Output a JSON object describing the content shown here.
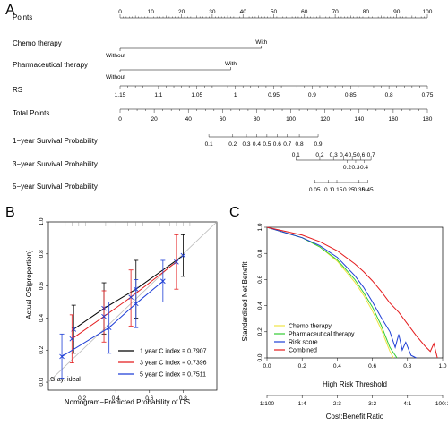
{
  "panels": {
    "a": "A",
    "b": "B",
    "c": "C"
  },
  "chart_data": [
    {
      "type": "nomogram",
      "rows": [
        {
          "label": "Points",
          "scale": [
            {
              "value": 0,
              "text": "0"
            },
            {
              "value": 10,
              "text": "10"
            },
            {
              "value": 20,
              "text": "20"
            },
            {
              "value": 30,
              "text": "30"
            },
            {
              "value": 40,
              "text": "40"
            },
            {
              "value": 50,
              "text": "50"
            },
            {
              "value": 60,
              "text": "60"
            },
            {
              "value": 70,
              "text": "70"
            },
            {
              "value": 80,
              "text": "80"
            },
            {
              "value": 90,
              "text": "90"
            },
            {
              "value": 100,
              "text": "100"
            }
          ]
        },
        {
          "label": "Chemo therapy",
          "categories": [
            {
              "points": 0,
              "text": "Without"
            },
            {
              "points": 46,
              "text": "With"
            }
          ]
        },
        {
          "label": "Pharmaceutical therapy",
          "categories": [
            {
              "points": 0,
              "text": "Without"
            },
            {
              "points": 36,
              "text": "With"
            }
          ]
        },
        {
          "label": "RS",
          "scale": [
            {
              "points": 0,
              "text": "1.15"
            },
            {
              "points": 12.5,
              "text": "1.1"
            },
            {
              "points": 25,
              "text": "1.05"
            },
            {
              "points": 37.5,
              "text": "1"
            },
            {
              "points": 50,
              "text": "0.95"
            },
            {
              "points": 62.5,
              "text": "0.9"
            },
            {
              "points": 75,
              "text": "0.85"
            },
            {
              "points": 87.5,
              "text": "0.8"
            },
            {
              "points": 100,
              "text": "0.75"
            }
          ]
        },
        {
          "label": "Total Points",
          "scale": [
            {
              "value": 0,
              "text": "0"
            },
            {
              "value": 20,
              "text": "20"
            },
            {
              "value": 40,
              "text": "40"
            },
            {
              "value": 60,
              "text": "60"
            },
            {
              "value": 80,
              "text": "80"
            },
            {
              "value": 100,
              "text": "100"
            },
            {
              "value": 120,
              "text": "120"
            },
            {
              "value": 140,
              "text": "140"
            },
            {
              "value": 160,
              "text": "160"
            },
            {
              "value": 180,
              "text": "180"
            }
          ]
        },
        {
          "label": "1−year Survival Probability",
          "scale": [
            {
              "total": 52,
              "text": "0.1"
            },
            {
              "total": 66,
              "text": "0.2"
            },
            {
              "total": 74,
              "text": "0.3"
            },
            {
              "total": 80,
              "text": "0.4"
            },
            {
              "total": 86,
              "text": "0.5"
            },
            {
              "total": 92,
              "text": "0.6"
            },
            {
              "total": 98,
              "text": "0.7"
            },
            {
              "total": 105,
              "text": "0.8"
            },
            {
              "total": 116,
              "text": "0.9"
            }
          ]
        },
        {
          "label": "3−year Survival Probability",
          "scale": [
            {
              "total": 103,
              "text": "0.1",
              "tier": "upper"
            },
            {
              "total": 117,
              "text": "0.2",
              "tier": "upper"
            },
            {
              "total": 125,
              "text": "0.3",
              "tier": "upper"
            },
            {
              "total": 131,
              "text": "0.4",
              "tier": "upper"
            },
            {
              "total": 136,
              "text": "0.5",
              "tier": "upper"
            },
            {
              "total": 141,
              "text": "0.6",
              "tier": "upper"
            },
            {
              "total": 147,
              "text": "0.7",
              "tier": "upper"
            },
            {
              "total": 133,
              "text": "0.2",
              "tier": "lower"
            },
            {
              "total": 138,
              "text": "0.3",
              "tier": "lower"
            },
            {
              "total": 143,
              "text": "0.4",
              "tier": "lower"
            }
          ]
        },
        {
          "label": "5−year Survival Probability",
          "scale": [
            {
              "total": 114,
              "text": "0.05"
            },
            {
              "total": 122,
              "text": "0.1"
            },
            {
              "total": 127,
              "text": "0.15"
            },
            {
              "total": 134,
              "text": "0.25"
            },
            {
              "total": 140,
              "text": "0.35"
            },
            {
              "total": 145,
              "text": "0.45"
            }
          ]
        }
      ]
    },
    {
      "type": "line",
      "title": "",
      "xlabel": "Nomogram−Predicted Probability of OS",
      "ylabel": "Actual OS(proportion)",
      "xlim": [
        0,
        1
      ],
      "ylim": [
        -0.05,
        1
      ],
      "xticks": [
        {
          "value": 0.2,
          "text": "0.2"
        },
        {
          "value": 0.4,
          "text": "0.4"
        },
        {
          "value": 0.6,
          "text": "0.6"
        },
        {
          "value": 0.8,
          "text": "0.8"
        }
      ],
      "yticks": [
        {
          "value": 0.0,
          "text": "0.0"
        },
        {
          "value": 0.2,
          "text": "0.2"
        },
        {
          "value": 0.4,
          "text": "0.4"
        },
        {
          "value": 0.6,
          "text": "0.6"
        },
        {
          "value": 0.8,
          "text": "0.8"
        },
        {
          "value": 1.0,
          "text": "1.0"
        }
      ],
      "ideal_label": "Gray: ideal",
      "series": [
        {
          "name": "1 year C index = 0.7907",
          "color": "#000000",
          "points": [
            {
              "x": 0.15,
              "y": 0.33,
              "lo": 0.18,
              "hi": 0.48
            },
            {
              "x": 0.33,
              "y": 0.46,
              "lo": 0.3,
              "hi": 0.62
            },
            {
              "x": 0.52,
              "y": 0.58,
              "lo": 0.4,
              "hi": 0.76
            },
            {
              "x": 0.8,
              "y": 0.79,
              "lo": 0.66,
              "hi": 0.92
            }
          ]
        },
        {
          "name": "3 year C index = 0.7396",
          "color": "#e41a1c",
          "points": [
            {
              "x": 0.14,
              "y": 0.27,
              "lo": 0.12,
              "hi": 0.42
            },
            {
              "x": 0.33,
              "y": 0.41,
              "lo": 0.25,
              "hi": 0.57
            },
            {
              "x": 0.49,
              "y": 0.53,
              "lo": 0.35,
              "hi": 0.7
            },
            {
              "x": 0.76,
              "y": 0.75,
              "lo": 0.58,
              "hi": 0.92
            }
          ]
        },
        {
          "name": "5 year C index = 0.7511",
          "color": "#1f3fd6",
          "points": [
            {
              "x": 0.08,
              "y": 0.16,
              "lo": 0.02,
              "hi": 0.3
            },
            {
              "x": 0.36,
              "y": 0.34,
              "lo": 0.18,
              "hi": 0.5
            },
            {
              "x": 0.52,
              "y": 0.49,
              "lo": 0.34,
              "hi": 0.64
            },
            {
              "x": 0.68,
              "y": 0.63,
              "lo": 0.5,
              "hi": 0.76
            }
          ]
        }
      ]
    },
    {
      "type": "line",
      "title": "",
      "xlabel": "High Risk Threshold",
      "xlabel2": "Cost:Benefit Ratio",
      "ylabel": "Standardized Net Benefit",
      "xlim": [
        0,
        1
      ],
      "ylim": [
        0,
        1
      ],
      "xticks": [
        {
          "value": 0.0,
          "text": "0.0"
        },
        {
          "value": 0.2,
          "text": "0.2"
        },
        {
          "value": 0.4,
          "text": "0.4"
        },
        {
          "value": 0.6,
          "text": "0.6"
        },
        {
          "value": 0.8,
          "text": "0.8"
        },
        {
          "value": 1.0,
          "text": "1.0"
        }
      ],
      "xticks2": [
        {
          "value": 0.0,
          "text": "1:100"
        },
        {
          "value": 0.2,
          "text": "1:4"
        },
        {
          "value": 0.4,
          "text": "2:3"
        },
        {
          "value": 0.6,
          "text": "3:2"
        },
        {
          "value": 0.8,
          "text": "4:1"
        },
        {
          "value": 1.0,
          "text": "100:1"
        }
      ],
      "yticks": [
        {
          "value": 0.0,
          "text": "0.0"
        },
        {
          "value": 0.2,
          "text": "0.2"
        },
        {
          "value": 0.4,
          "text": "0.4"
        },
        {
          "value": 0.6,
          "text": "0.6"
        },
        {
          "value": 0.8,
          "text": "0.8"
        },
        {
          "value": 1.0,
          "text": "1.0"
        }
      ],
      "legend_position": "bottom-left",
      "series": [
        {
          "name": "Chemo therapy",
          "color": "#f0e442",
          "x": [
            0,
            0.05,
            0.1,
            0.2,
            0.3,
            0.4,
            0.5,
            0.55,
            0.6,
            0.65,
            0.7,
            0.72
          ],
          "y": [
            1.0,
            0.98,
            0.96,
            0.92,
            0.85,
            0.74,
            0.58,
            0.48,
            0.36,
            0.22,
            0.05,
            0.0
          ]
        },
        {
          "name": "Pharmaceutical therapy",
          "color": "#33cc33",
          "x": [
            0,
            0.05,
            0.1,
            0.2,
            0.3,
            0.4,
            0.5,
            0.55,
            0.6,
            0.65,
            0.7,
            0.74
          ],
          "y": [
            1.0,
            0.98,
            0.96,
            0.92,
            0.85,
            0.75,
            0.6,
            0.5,
            0.39,
            0.25,
            0.08,
            0.0
          ]
        },
        {
          "name": "Risk score",
          "color": "#1f3fd6",
          "x": [
            0,
            0.1,
            0.2,
            0.3,
            0.4,
            0.5,
            0.55,
            0.6,
            0.65,
            0.7,
            0.73,
            0.75,
            0.77,
            0.79,
            0.82,
            0.85
          ],
          "y": [
            1.0,
            0.96,
            0.92,
            0.86,
            0.77,
            0.63,
            0.54,
            0.43,
            0.31,
            0.2,
            0.08,
            0.18,
            0.06,
            0.12,
            0.02,
            0.0
          ]
        },
        {
          "name": "Combined",
          "color": "#e41a1c",
          "x": [
            0,
            0.1,
            0.2,
            0.3,
            0.4,
            0.5,
            0.55,
            0.6,
            0.65,
            0.7,
            0.75,
            0.8,
            0.85,
            0.9,
            0.93,
            0.95,
            0.97
          ],
          "y": [
            1.0,
            0.97,
            0.94,
            0.89,
            0.82,
            0.72,
            0.66,
            0.59,
            0.51,
            0.42,
            0.35,
            0.26,
            0.17,
            0.09,
            0.05,
            0.11,
            0.0
          ]
        }
      ]
    }
  ]
}
